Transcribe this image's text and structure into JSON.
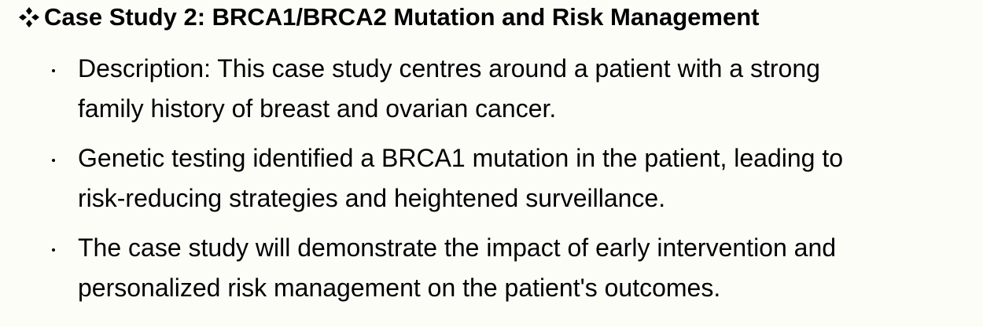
{
  "heading": {
    "icon": "four-diamond-bullet-icon",
    "text": "Case Study 2: BRCA1/BRCA2 Mutation and Risk Management"
  },
  "bullets": [
    {
      "line1": "Description: This case study centres around a patient with a strong",
      "line2": "family history of breast and ovarian cancer."
    },
    {
      "line1": "Genetic testing identified a BRCA1 mutation in the patient, leading to",
      "line2": "risk-reducing strategies and heightened surveillance."
    },
    {
      "line1": "The case study will demonstrate the impact of early intervention and",
      "line2": "personalized risk management on the patient's outcomes."
    }
  ],
  "colors": {
    "background": "#fdfdf8",
    "text": "#000000"
  }
}
